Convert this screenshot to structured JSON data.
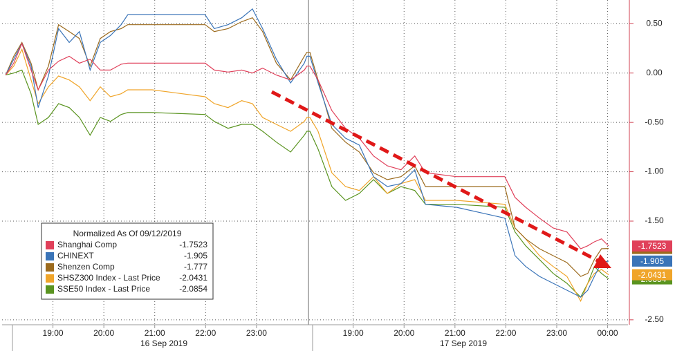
{
  "chart_data": {
    "type": "line",
    "legend_title": "Normalized As Of 09/12/2019",
    "date_labels": [
      "16 Sep 2019",
      "17 Sep 2019"
    ],
    "x": [
      18.07,
      18.23,
      18.39,
      18.57,
      18.71,
      18.91,
      19.11,
      19.32,
      19.52,
      19.73,
      19.93,
      20.13,
      20.34,
      20.47,
      20.95,
      21.99,
      22.17,
      22.44,
      22.71,
      22.92,
      23.12,
      23.39,
      23.67,
      23.94,
      23.99,
      24.05,
      24.21,
      24.48,
      24.75,
      25.02,
      25.3,
      25.57,
      25.84,
      26.11,
      26.32,
      26.93,
      27.88,
      28.08,
      28.29,
      28.56,
      28.83,
      29.1,
      29.37,
      29.51,
      29.64,
      29.78,
      29.92
    ],
    "series": [
      {
        "name": "Shanghai Comp",
        "color": "#e0405a",
        "values": [
          -0.02,
          0.1,
          0.3,
          0.03,
          -0.17,
          0.03,
          0.12,
          0.17,
          0.1,
          0.14,
          0.03,
          0.03,
          0.09,
          0.1,
          0.1,
          0.1,
          0.03,
          0.01,
          0.03,
          0.0,
          0.05,
          -0.02,
          -0.07,
          0.03,
          0.07,
          0.07,
          -0.07,
          -0.38,
          -0.56,
          -0.66,
          -0.84,
          -0.94,
          -0.98,
          -0.84,
          -1.01,
          -1.05,
          -1.05,
          -1.26,
          -1.36,
          -1.47,
          -1.57,
          -1.61,
          -1.78,
          -1.75,
          -1.71,
          -1.68,
          -1.7523
        ]
      },
      {
        "name": "CHINEXT",
        "color": "#3a74b8",
        "values": [
          -0.02,
          0.14,
          0.3,
          0.07,
          -0.35,
          -0.03,
          0.45,
          0.31,
          0.42,
          0.03,
          0.31,
          0.38,
          0.49,
          0.59,
          0.59,
          0.59,
          0.45,
          0.49,
          0.56,
          0.65,
          0.45,
          0.14,
          -0.1,
          0.1,
          0.17,
          0.17,
          -0.1,
          -0.52,
          -0.66,
          -0.73,
          -1.05,
          -1.15,
          -1.12,
          -0.98,
          -1.33,
          -1.36,
          -1.47,
          -1.85,
          -1.96,
          -2.06,
          -2.13,
          -2.2,
          -2.27,
          -2.2,
          -2.06,
          -1.92,
          -1.905
        ]
      },
      {
        "name": "Shenzen Comp",
        "color": "#9c6b1e",
        "values": [
          -0.02,
          0.17,
          0.31,
          0.1,
          -0.17,
          0.07,
          0.49,
          0.42,
          0.35,
          0.07,
          0.35,
          0.42,
          0.45,
          0.49,
          0.49,
          0.49,
          0.42,
          0.45,
          0.52,
          0.56,
          0.42,
          0.1,
          -0.07,
          0.17,
          0.21,
          0.21,
          -0.07,
          -0.56,
          -0.7,
          -0.8,
          -1.01,
          -1.08,
          -1.05,
          -0.94,
          -1.15,
          -1.15,
          -1.15,
          -1.57,
          -1.68,
          -1.78,
          -1.85,
          -1.92,
          -2.06,
          -2.03,
          -1.89,
          -1.78,
          -1.777
        ]
      },
      {
        "name": "SHSZ300 Index - Last Price",
        "color": "#f0a52a",
        "values": [
          -0.02,
          0.07,
          0.24,
          -0.07,
          -0.31,
          -0.14,
          -0.03,
          -0.07,
          -0.14,
          -0.28,
          -0.14,
          -0.24,
          -0.21,
          -0.17,
          -0.17,
          -0.24,
          -0.31,
          -0.35,
          -0.28,
          -0.31,
          -0.45,
          -0.52,
          -0.59,
          -0.49,
          -0.45,
          -0.45,
          -0.59,
          -1.01,
          -1.15,
          -1.19,
          -1.05,
          -1.22,
          -1.12,
          -1.08,
          -1.29,
          -1.29,
          -1.33,
          -1.57,
          -1.68,
          -1.85,
          -1.96,
          -2.06,
          -2.31,
          -2.13,
          -2.03,
          -1.99,
          -2.0431
        ]
      },
      {
        "name": "SSE50 Index - Last Price",
        "color": "#5a9420",
        "values": [
          -0.02,
          0.0,
          0.03,
          -0.21,
          -0.52,
          -0.45,
          -0.31,
          -0.35,
          -0.45,
          -0.63,
          -0.45,
          -0.49,
          -0.42,
          -0.4,
          -0.4,
          -0.42,
          -0.49,
          -0.56,
          -0.52,
          -0.52,
          -0.59,
          -0.7,
          -0.8,
          -0.63,
          -0.59,
          -0.59,
          -0.77,
          -1.15,
          -1.29,
          -1.22,
          -1.08,
          -1.22,
          -1.15,
          -1.19,
          -1.33,
          -1.33,
          -1.36,
          -1.61,
          -1.75,
          -1.89,
          -2.03,
          -2.13,
          -2.27,
          -2.13,
          -1.96,
          -2.03,
          -2.0854
        ]
      }
    ],
    "xlim": [
      18,
      30.3
    ],
    "xticks": [
      {
        "value": 19,
        "label": "19:00"
      },
      {
        "value": 20,
        "label": "20:00"
      },
      {
        "value": 21,
        "label": "21:00"
      },
      {
        "value": 22,
        "label": "22:00"
      },
      {
        "value": 23,
        "label": "23:00"
      },
      {
        "value": 24.9,
        "label": "19:00"
      },
      {
        "value": 25.9,
        "label": "20:00"
      },
      {
        "value": 26.9,
        "label": "21:00"
      },
      {
        "value": 27.9,
        "label": "22:00"
      },
      {
        "value": 28.9,
        "label": "23:00"
      },
      {
        "value": 29.9,
        "label": "00:00"
      }
    ],
    "ylim": [
      -2.55,
      0.74
    ],
    "yticks": [
      {
        "value": 0.5,
        "label": "0.50"
      },
      {
        "value": 0,
        "label": "0.00"
      },
      {
        "value": -0.5,
        "label": "-0.50"
      },
      {
        "value": -1,
        "label": "-1.00"
      },
      {
        "value": -1.5,
        "label": "-1.50"
      },
      {
        "value": -2.5,
        "label": "-2.50"
      }
    ],
    "grid": true
  }
}
